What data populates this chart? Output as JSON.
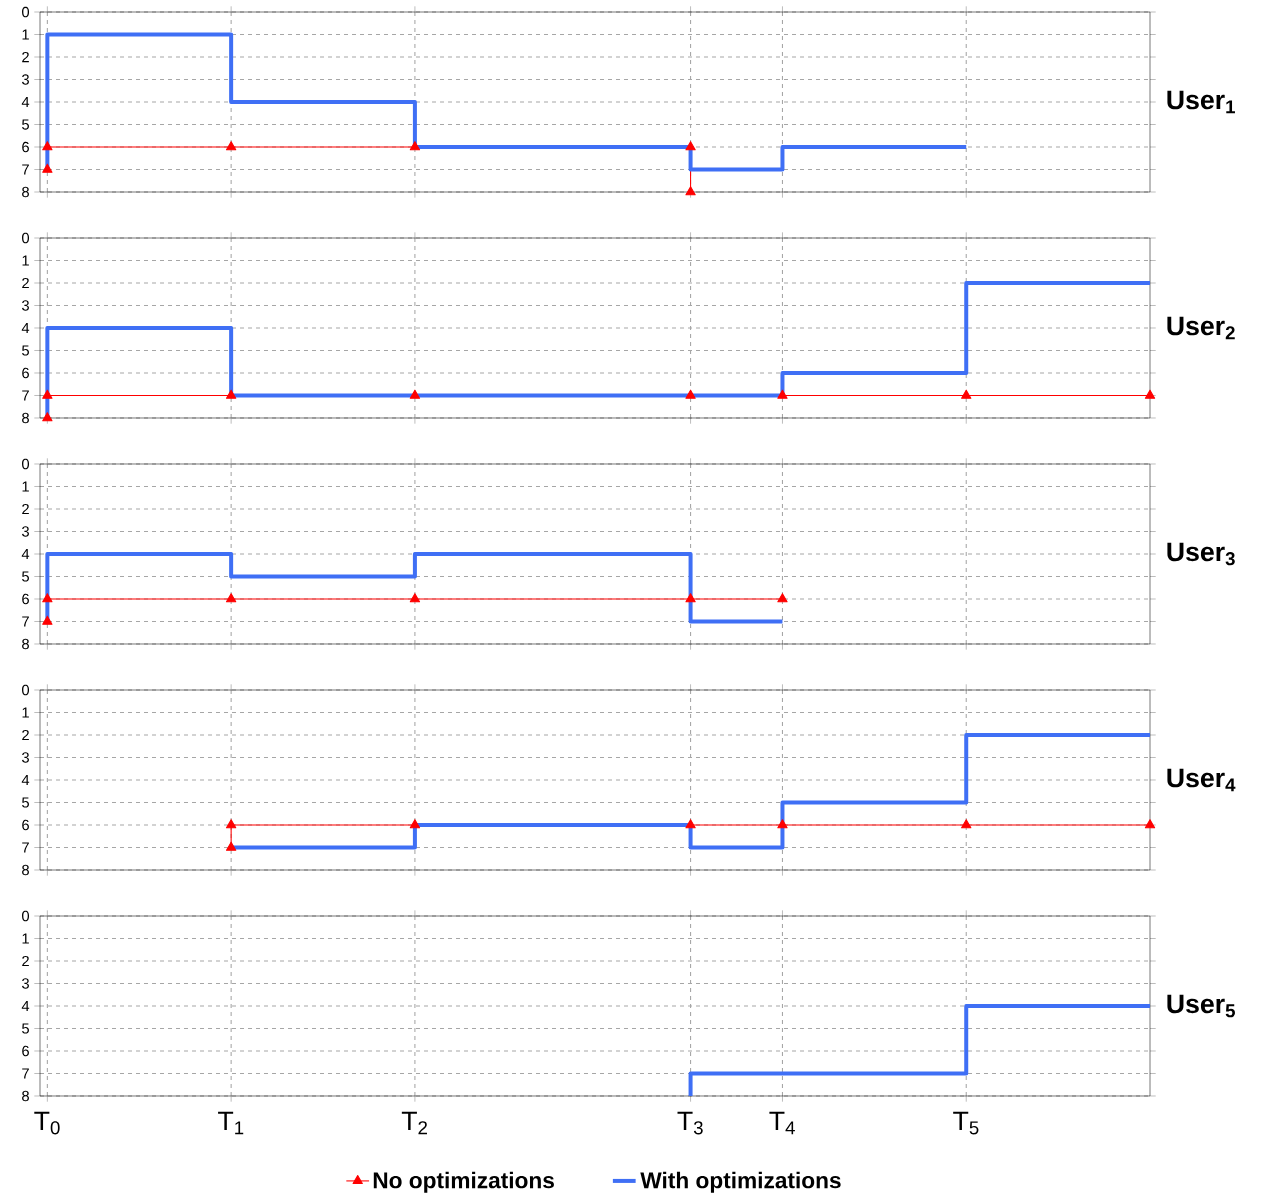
{
  "chart_data": [
    {
      "type": "step",
      "annotations": [
        "User$_{1}$"
      ],
      "xlim": [
        -0.04,
        6
      ],
      "ylim": [
        8,
        0
      ],
      "grid": true,
      "legend": "bottom",
      "tick_labels": "y",
      "xticks": [
        {
          "value": 0,
          "label": null
        },
        {
          "value": 1,
          "label": null
        },
        {
          "value": 2,
          "label": null
        },
        {
          "value": 3.5,
          "label": null
        },
        {
          "value": 4,
          "label": null
        },
        {
          "value": 5,
          "label": null
        }
      ],
      "yticks": [
        0,
        1,
        2,
        3,
        4,
        5,
        6,
        7,
        8
      ],
      "series": [
        {
          "name": "No optimizations",
          "color": "#ff0000",
          "marker": "triangle",
          "x": [
            0,
            0,
            1,
            2,
            3.5,
            3.5
          ],
          "values": [
            7,
            6,
            6,
            6,
            6,
            8
          ]
        },
        {
          "name": "With optimizations",
          "color": "#3f6ff5",
          "marker": "none",
          "x": [
            0,
            0,
            1,
            2,
            3.5,
            4,
            5
          ],
          "values": [
            7,
            1,
            4,
            6,
            7,
            6,
            6
          ]
        }
      ]
    },
    {
      "type": "step",
      "annotations": [
        "User$_{2}$"
      ],
      "xlim": [
        -0.04,
        6
      ],
      "ylim": [
        8,
        0
      ],
      "grid": true,
      "tick_labels": "y",
      "xticks": [
        {
          "value": 0,
          "label": null
        },
        {
          "value": 1,
          "label": null
        },
        {
          "value": 2,
          "label": null
        },
        {
          "value": 3.5,
          "label": null
        },
        {
          "value": 4,
          "label": null
        },
        {
          "value": 5,
          "label": null
        }
      ],
      "yticks": [
        0,
        1,
        2,
        3,
        4,
        5,
        6,
        7,
        8
      ],
      "series": [
        {
          "color": "#ff0000",
          "marker": "triangle",
          "x": [
            0,
            0,
            1,
            2,
            3.5,
            4,
            5,
            6
          ],
          "values": [
            8,
            7,
            7,
            7,
            7,
            7,
            7,
            7
          ]
        },
        {
          "color": "#3f6ff5",
          "marker": "none",
          "x": [
            0,
            0,
            1,
            2,
            3.5,
            4,
            5,
            6
          ],
          "values": [
            8,
            4,
            7,
            7,
            7,
            6,
            2,
            2
          ]
        }
      ]
    },
    {
      "type": "step",
      "annotations": [
        "User$_{3}$"
      ],
      "xlim": [
        -0.04,
        6
      ],
      "ylim": [
        8,
        0
      ],
      "grid": true,
      "tick_labels": "y",
      "xticks": [
        {
          "value": 0,
          "label": null
        },
        {
          "value": 1,
          "label": null
        },
        {
          "value": 2,
          "label": null
        },
        {
          "value": 3.5,
          "label": null
        },
        {
          "value": 4,
          "label": null
        },
        {
          "value": 5,
          "label": null
        }
      ],
      "yticks": [
        0,
        1,
        2,
        3,
        4,
        5,
        6,
        7,
        8
      ],
      "series": [
        {
          "color": "#ff0000",
          "marker": "triangle",
          "x": [
            0,
            0,
            1,
            2,
            3.5,
            4
          ],
          "values": [
            7,
            6,
            6,
            6,
            6,
            6
          ]
        },
        {
          "color": "#3f6ff5",
          "marker": "none",
          "x": [
            0,
            0,
            1,
            2,
            3.5,
            4
          ],
          "values": [
            7,
            4,
            5,
            4,
            7,
            7
          ]
        }
      ]
    },
    {
      "type": "step",
      "annotations": [
        "User$_{4}$"
      ],
      "xlim": [
        -0.04,
        6
      ],
      "ylim": [
        8,
        0
      ],
      "grid": true,
      "tick_labels": "y",
      "xticks": [
        {
          "value": 0,
          "label": null
        },
        {
          "value": 1,
          "label": null
        },
        {
          "value": 2,
          "label": null
        },
        {
          "value": 3.5,
          "label": null
        },
        {
          "value": 4,
          "label": null
        },
        {
          "value": 5,
          "label": null
        }
      ],
      "yticks": [
        0,
        1,
        2,
        3,
        4,
        5,
        6,
        7,
        8
      ],
      "series": [
        {
          "color": "#ff0000",
          "marker": "triangle",
          "x": [
            1,
            1,
            2,
            3.5,
            4,
            5,
            6
          ],
          "values": [
            7,
            6,
            6,
            6,
            6,
            6,
            6
          ]
        },
        {
          "color": "#3f6ff5",
          "marker": "none",
          "x": [
            1,
            2,
            3.5,
            4,
            5,
            6
          ],
          "values": [
            7,
            6,
            7,
            5,
            2,
            2
          ]
        }
      ]
    },
    {
      "type": "step",
      "annotations": [
        "User$_{5}$"
      ],
      "xlim": [
        -0.04,
        6
      ],
      "ylim": [
        8,
        0
      ],
      "grid": true,
      "xticks": [
        {
          "value": 0,
          "label": "T$_{0}$"
        },
        {
          "value": 1,
          "label": "T$_{1}$"
        },
        {
          "value": 2,
          "label": "T$_{2}$"
        },
        {
          "value": 3.5,
          "label": "T$_{3}$"
        },
        {
          "value": 4,
          "label": "T$_{4}$"
        },
        {
          "value": 5,
          "label": "T$_{5}$"
        }
      ],
      "yticks": [
        0,
        1,
        2,
        3,
        4,
        5,
        6,
        7,
        8
      ],
      "series": [
        {
          "color": "#3f6ff5",
          "marker": "none",
          "x": [
            3.5,
            3.5,
            5,
            6
          ],
          "values": [
            8,
            7,
            4,
            4
          ]
        }
      ]
    }
  ]
}
